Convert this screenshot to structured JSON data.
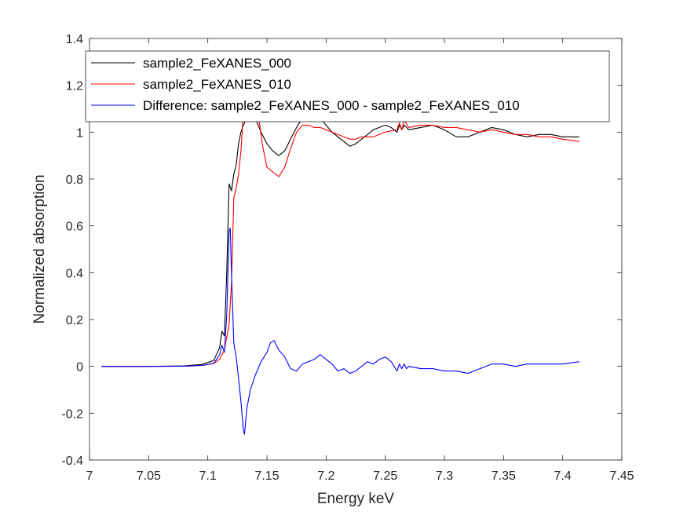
{
  "chart_data": {
    "type": "line",
    "title": "",
    "xlabel": "Energy keV",
    "ylabel": "Normalized absorption",
    "xlim": [
      7.0,
      7.45
    ],
    "ylim": [
      -0.4,
      1.4
    ],
    "xticks": [
      "7",
      "7.05",
      "7.1",
      "7.15",
      "7.2",
      "7.25",
      "7.3",
      "7.35",
      "7.4",
      "7.45"
    ],
    "yticks": [
      "-0.4",
      "-0.2",
      "0",
      "0.2",
      "0.4",
      "0.6",
      "0.8",
      "1",
      "1.2",
      "1.4"
    ],
    "grid": false,
    "legend_position": "top",
    "series": [
      {
        "name": "sample2_FeXANES_000",
        "color": "#000000",
        "x": [
          7.01,
          7.05,
          7.08,
          7.095,
          7.105,
          7.11,
          7.112,
          7.114,
          7.116,
          7.118,
          7.12,
          7.122,
          7.124,
          7.126,
          7.128,
          7.13,
          7.133,
          7.136,
          7.14,
          7.145,
          7.15,
          7.155,
          7.16,
          7.165,
          7.17,
          7.175,
          7.18,
          7.185,
          7.19,
          7.195,
          7.2,
          7.205,
          7.21,
          7.215,
          7.22,
          7.225,
          7.23,
          7.235,
          7.24,
          7.245,
          7.25,
          7.255,
          7.26,
          7.262,
          7.264,
          7.266,
          7.27,
          7.28,
          7.29,
          7.3,
          7.31,
          7.32,
          7.33,
          7.34,
          7.35,
          7.36,
          7.37,
          7.38,
          7.39,
          7.4,
          7.414
        ],
        "y": [
          0.0,
          0.0,
          0.002,
          0.008,
          0.025,
          0.08,
          0.15,
          0.13,
          0.4,
          0.78,
          0.75,
          0.82,
          0.86,
          0.95,
          1.0,
          1.03,
          1.06,
          1.1,
          1.06,
          1.0,
          0.95,
          0.92,
          0.9,
          0.92,
          0.97,
          1.02,
          1.06,
          1.08,
          1.08,
          1.06,
          1.03,
          1.0,
          0.98,
          0.96,
          0.94,
          0.95,
          0.97,
          0.99,
          1.01,
          1.02,
          1.03,
          1.02,
          1.0,
          1.03,
          1.01,
          1.03,
          1.01,
          1.02,
          1.03,
          1.01,
          0.98,
          0.98,
          1.0,
          1.02,
          1.01,
          0.99,
          0.98,
          0.99,
          0.99,
          0.98,
          0.98
        ]
      },
      {
        "name": "sample2_FeXANES_010",
        "color": "#ff0000",
        "x": [
          7.01,
          7.05,
          7.08,
          7.095,
          7.105,
          7.11,
          7.114,
          7.118,
          7.12,
          7.122,
          7.124,
          7.126,
          7.128,
          7.13,
          7.132,
          7.134,
          7.138,
          7.142,
          7.146,
          7.15,
          7.155,
          7.16,
          7.165,
          7.17,
          7.175,
          7.18,
          7.185,
          7.19,
          7.195,
          7.2,
          7.205,
          7.21,
          7.215,
          7.22,
          7.225,
          7.23,
          7.24,
          7.25,
          7.26,
          7.262,
          7.264,
          7.266,
          7.27,
          7.28,
          7.29,
          7.3,
          7.31,
          7.32,
          7.33,
          7.34,
          7.35,
          7.36,
          7.37,
          7.38,
          7.39,
          7.4,
          7.414
        ],
        "y": [
          0.0,
          0.0,
          0.001,
          0.004,
          0.012,
          0.03,
          0.07,
          0.18,
          0.35,
          0.72,
          0.76,
          0.82,
          0.92,
          1.08,
          1.22,
          1.3,
          1.25,
          1.1,
          0.95,
          0.85,
          0.83,
          0.81,
          0.85,
          0.93,
          1.0,
          1.03,
          1.03,
          1.02,
          1.02,
          1.01,
          1.0,
          0.99,
          0.98,
          0.97,
          0.97,
          0.98,
          0.98,
          1.0,
          1.01,
          1.04,
          1.01,
          1.05,
          1.02,
          1.03,
          1.03,
          1.02,
          1.02,
          1.01,
          1.0,
          1.01,
          1.0,
          0.99,
          0.99,
          0.98,
          0.98,
          0.97,
          0.96
        ]
      },
      {
        "name": "Difference: sample2_FeXANES_000 - sample2_FeXANES_010",
        "color": "#0000ff",
        "x": [
          7.01,
          7.05,
          7.08,
          7.095,
          7.105,
          7.11,
          7.112,
          7.114,
          7.116,
          7.118,
          7.119,
          7.12,
          7.122,
          7.124,
          7.126,
          7.128,
          7.13,
          7.131,
          7.133,
          7.136,
          7.14,
          7.145,
          7.15,
          7.153,
          7.156,
          7.16,
          7.165,
          7.17,
          7.175,
          7.18,
          7.185,
          7.19,
          7.195,
          7.2,
          7.205,
          7.21,
          7.215,
          7.22,
          7.225,
          7.23,
          7.235,
          7.24,
          7.245,
          7.25,
          7.255,
          7.26,
          7.262,
          7.264,
          7.266,
          7.268,
          7.27,
          7.28,
          7.29,
          7.3,
          7.31,
          7.32,
          7.33,
          7.34,
          7.35,
          7.36,
          7.37,
          7.38,
          7.39,
          7.4,
          7.414
        ],
        "y": [
          0.0,
          0.0,
          0.001,
          0.004,
          0.013,
          0.05,
          0.09,
          0.06,
          0.22,
          0.58,
          0.59,
          0.4,
          0.1,
          0.04,
          -0.05,
          -0.15,
          -0.27,
          -0.29,
          -0.18,
          -0.1,
          -0.04,
          0.02,
          0.06,
          0.1,
          0.11,
          0.07,
          0.04,
          -0.01,
          -0.02,
          0.01,
          0.02,
          0.03,
          0.05,
          0.03,
          0.01,
          -0.02,
          -0.01,
          -0.03,
          -0.02,
          0.0,
          0.02,
          0.01,
          0.03,
          0.04,
          0.02,
          -0.02,
          0.01,
          -0.01,
          0.01,
          -0.01,
          0.0,
          -0.01,
          -0.01,
          -0.02,
          -0.02,
          -0.03,
          -0.01,
          0.01,
          0.01,
          0.0,
          0.01,
          0.01,
          0.01,
          0.01,
          0.02
        ]
      }
    ]
  }
}
